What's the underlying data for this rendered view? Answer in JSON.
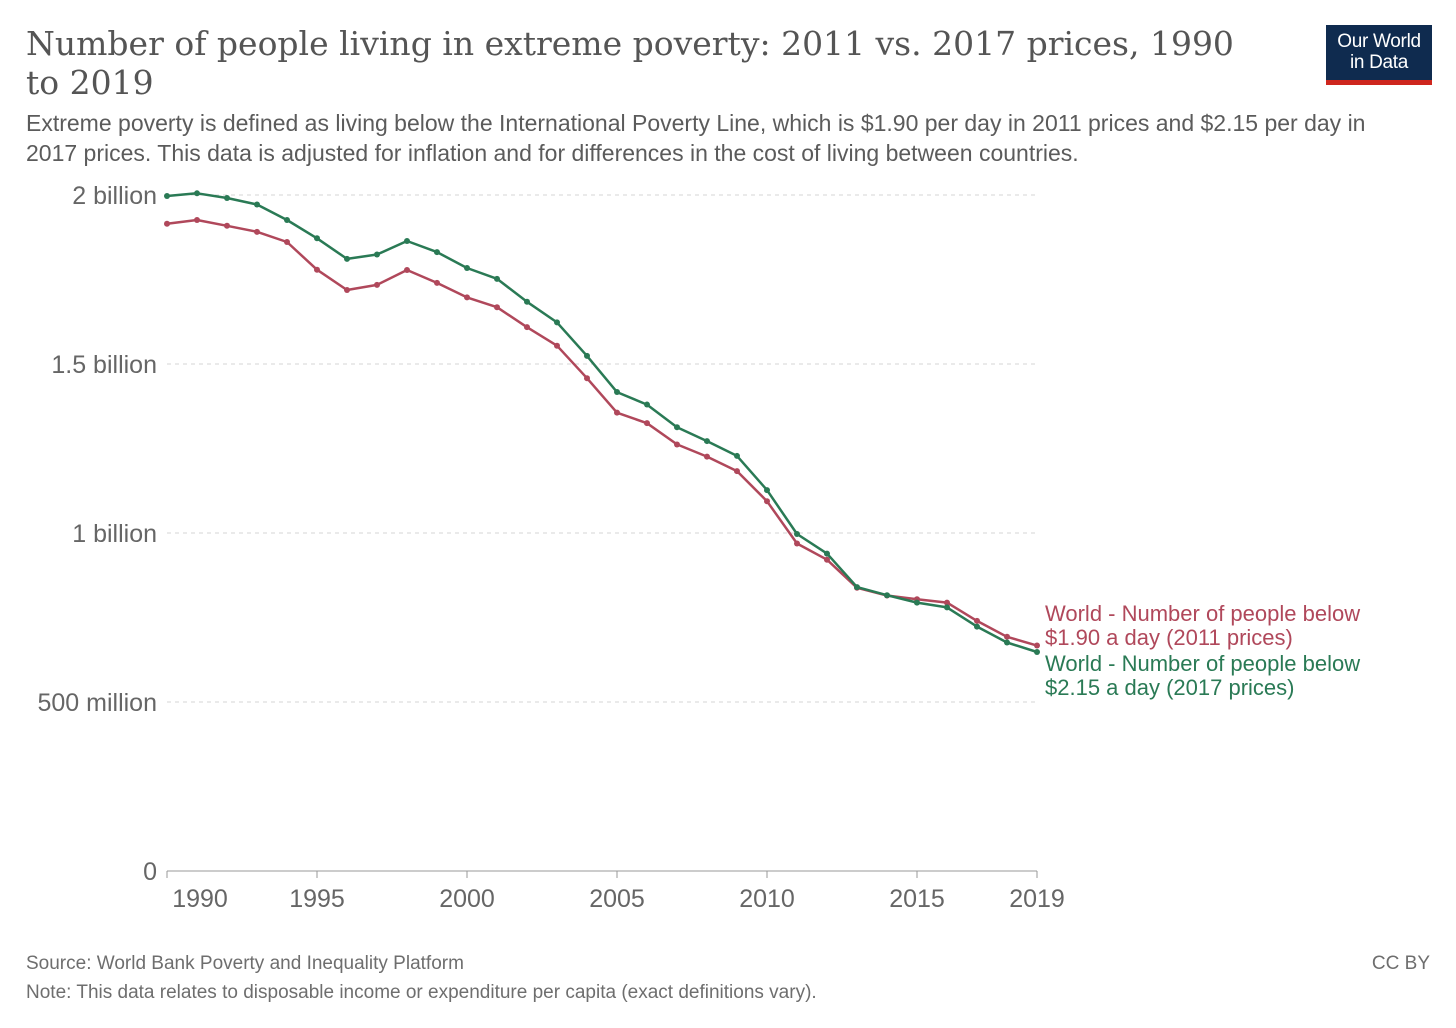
{
  "header": {
    "title": "Number of people living in extreme poverty: 2011 vs. 2017 prices, 1990 to 2019",
    "subtitle": "Extreme poverty is defined as living below the International Poverty Line, which is $1.90 per day in 2011 prices and $2.15 per day in 2017 prices. This data is adjusted for inflation and for differences in the cost of living between countries."
  },
  "logo": {
    "line1": "Our World",
    "line2": "in Data",
    "bg_color": "#0f2b4f",
    "accent_color": "#ce261e"
  },
  "footer": {
    "source": "Source: World Bank Poverty and Inequality Platform",
    "note": "Note: This data relates to disposable income or expenditure per capita (exact definitions vary).",
    "license": "CC BY"
  },
  "chart_data": {
    "type": "line",
    "title": "Number of people living in extreme poverty: 2011 vs. 2017 prices, 1990 to 2019",
    "xlabel": "",
    "ylabel": "",
    "xlim": [
      1990,
      2019
    ],
    "ylim": [
      0,
      2000000000
    ],
    "grid": "horizontal dashed",
    "legend": "right, inline labels at line ends",
    "x_ticks": [
      {
        "value": 1990,
        "label": "1990"
      },
      {
        "value": 1995,
        "label": "1995"
      },
      {
        "value": 2000,
        "label": "2000"
      },
      {
        "value": 2005,
        "label": "2005"
      },
      {
        "value": 2010,
        "label": "2010"
      },
      {
        "value": 2015,
        "label": "2015"
      },
      {
        "value": 2019,
        "label": "2019"
      }
    ],
    "y_ticks": [
      {
        "value": 0,
        "label": "0"
      },
      {
        "value": 500000000,
        "label": "500 million"
      },
      {
        "value": 1000000000,
        "label": "1 billion"
      },
      {
        "value": 1500000000,
        "label": "1.5 billion"
      },
      {
        "value": 2000000000,
        "label": "2 billion"
      }
    ],
    "x": [
      1990,
      1991,
      1992,
      1993,
      1994,
      1995,
      1996,
      1997,
      1998,
      1999,
      2000,
      2001,
      2002,
      2003,
      2004,
      2005,
      2006,
      2007,
      2008,
      2009,
      2010,
      2011,
      2012,
      2013,
      2014,
      2015,
      2016,
      2017,
      2018,
      2019
    ],
    "series": [
      {
        "name": "World - Number of people below $1.90 a day (2011 prices)",
        "color": "#b0485b",
        "values": [
          1915000000.0,
          1926000000.0,
          1909000000.0,
          1891000000.0,
          1861000000.0,
          1779000000.0,
          1719000000.0,
          1734000000.0,
          1778000000.0,
          1740000000.0,
          1697000000.0,
          1668000000.0,
          1609000000.0,
          1554000000.0,
          1458000000.0,
          1356000000.0,
          1325000000.0,
          1262000000.0,
          1226000000.0,
          1183000000.0,
          1094000000.0,
          969000000.0,
          921000000.0,
          838000000.0,
          815000000.0,
          804000000.0,
          794000000.0,
          740000000.0,
          693000000.0,
          667000000.0
        ]
      },
      {
        "name": "World - Number of people below $2.15 a day (2017 prices)",
        "color": "#2a7a55",
        "values": [
          1997000000.0,
          2005000000.0,
          1991000000.0,
          1972000000.0,
          1926000000.0,
          1872000000.0,
          1811000000.0,
          1824000000.0,
          1864000000.0,
          1831000000.0,
          1784000000.0,
          1752000000.0,
          1684000000.0,
          1623000000.0,
          1524000000.0,
          1417000000.0,
          1380000000.0,
          1313000000.0,
          1272000000.0,
          1228000000.0,
          1127000000.0,
          997000000.0,
          939000000.0,
          840000000.0,
          816000000.0,
          794000000.0,
          780000000.0,
          723000000.0,
          676000000.0,
          648000000.0
        ]
      }
    ]
  }
}
